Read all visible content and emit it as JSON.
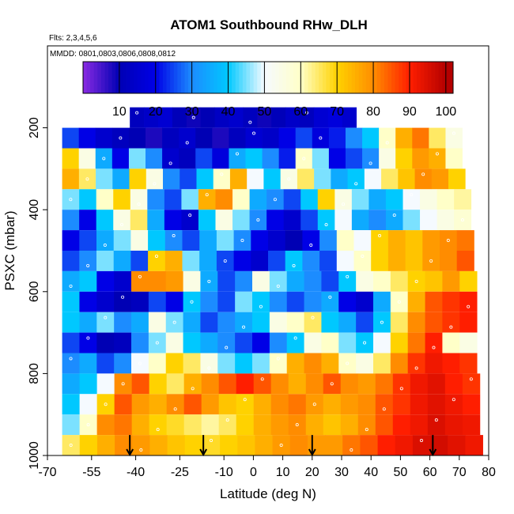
{
  "chart_data": {
    "type": "heatmap",
    "title": "ATOM1 Southbound RHw_DLH",
    "subtitle_flights": "Flts: 2,3,4,5,6",
    "subtitle_dates": "MMDD: 0801,0803,0806,0808,0812",
    "xlabel": "Latitude (deg N)",
    "ylabel": "PSXC (mbar)",
    "xlim": [
      -70,
      80
    ],
    "ylim": [
      1000,
      0
    ],
    "x_ticks": [
      -70,
      -55,
      -40,
      -25,
      -10,
      0,
      10,
      20,
      30,
      40,
      50,
      60,
      70,
      80
    ],
    "y_ticks": [
      200,
      400,
      600,
      800,
      1000
    ],
    "colorbar": {
      "range": [
        0,
        102
      ],
      "ticks": [
        10,
        20,
        30,
        40,
        50,
        60,
        70,
        80,
        90,
        100
      ],
      "stops": [
        {
          "v": 0,
          "color": "#8a2be2"
        },
        {
          "v": 10,
          "color": "#0000b4"
        },
        {
          "v": 20,
          "color": "#0000e6"
        },
        {
          "v": 30,
          "color": "#1c8cff"
        },
        {
          "v": 40,
          "color": "#00c8ff"
        },
        {
          "v": 50,
          "color": "#f5faff"
        },
        {
          "v": 60,
          "color": "#ffffc8"
        },
        {
          "v": 70,
          "color": "#ffd200"
        },
        {
          "v": 80,
          "color": "#ff8c00"
        },
        {
          "v": 90,
          "color": "#ff1e00"
        },
        {
          "v": 100,
          "color": "#b40000"
        }
      ]
    },
    "pressure_bins": [
      {
        "p": 175,
        "lat_min": -42,
        "lat_max": 35,
        "rh": [
          12,
          14,
          16,
          11,
          9,
          10,
          13,
          15,
          12,
          9,
          11,
          14,
          12,
          16,
          18,
          15
        ]
      },
      {
        "p": 225,
        "lat_min": -65,
        "lat_max": 71,
        "rh": [
          25,
          20,
          15,
          12,
          10,
          8,
          12,
          15,
          10,
          8,
          12,
          16,
          14,
          20,
          25,
          18,
          22,
          30,
          40,
          60,
          75,
          82,
          65,
          55
        ]
      },
      {
        "p": 275,
        "lat_min": -65,
        "lat_max": 71,
        "rh": [
          70,
          55,
          35,
          20,
          45,
          30,
          15,
          12,
          25,
          18,
          35,
          40,
          30,
          22,
          60,
          45,
          20,
          25,
          30,
          55,
          70,
          78,
          75,
          60
        ]
      },
      {
        "p": 325,
        "lat_min": -65,
        "lat_max": 72,
        "rh": [
          75,
          65,
          45,
          35,
          70,
          55,
          30,
          25,
          40,
          60,
          75,
          50,
          40,
          55,
          65,
          45,
          35,
          40,
          50,
          65,
          72,
          80,
          78,
          70
        ]
      },
      {
        "p": 375,
        "lat_min": -65,
        "lat_max": 74,
        "rh": [
          45,
          40,
          60,
          70,
          55,
          30,
          25,
          45,
          75,
          80,
          60,
          35,
          30,
          25,
          40,
          70,
          55,
          45,
          35,
          40,
          50,
          55,
          60,
          62
        ]
      },
      {
        "p": 425,
        "lat_min": -65,
        "lat_max": 74,
        "rh": [
          30,
          20,
          40,
          55,
          65,
          35,
          20,
          15,
          40,
          55,
          45,
          30,
          20,
          15,
          25,
          40,
          50,
          35,
          30,
          35,
          45,
          50,
          55,
          58
        ]
      },
      {
        "p": 475,
        "lat_min": -65,
        "lat_max": 75,
        "rh": [
          20,
          25,
          35,
          45,
          55,
          40,
          30,
          25,
          35,
          45,
          30,
          20,
          15,
          10,
          20,
          30,
          60,
          50,
          70,
          75,
          72,
          78,
          80,
          82
        ]
      },
      {
        "p": 525,
        "lat_min": -65,
        "lat_max": 75,
        "rh": [
          25,
          30,
          45,
          35,
          25,
          70,
          75,
          45,
          35,
          25,
          20,
          15,
          25,
          40,
          30,
          25,
          50,
          60,
          70,
          75,
          72,
          78,
          80,
          85
        ]
      },
      {
        "p": 575,
        "lat_min": -65,
        "lat_max": 76,
        "rh": [
          35,
          40,
          20,
          15,
          80,
          80,
          78,
          55,
          35,
          25,
          30,
          55,
          45,
          35,
          30,
          25,
          40,
          55,
          60,
          65,
          70,
          72,
          78,
          70
        ]
      },
      {
        "p": 625,
        "lat_min": -65,
        "lat_max": 76,
        "rh": [
          40,
          20,
          15,
          10,
          12,
          25,
          20,
          40,
          30,
          25,
          45,
          40,
          30,
          25,
          30,
          35,
          20,
          15,
          35,
          60,
          75,
          85,
          88,
          90
        ]
      },
      {
        "p": 675,
        "lat_min": -65,
        "lat_max": 76,
        "rh": [
          40,
          35,
          45,
          30,
          35,
          55,
          45,
          35,
          25,
          30,
          35,
          40,
          55,
          60,
          65,
          40,
          35,
          25,
          40,
          65,
          80,
          85,
          88,
          90
        ]
      },
      {
        "p": 725,
        "lat_min": -65,
        "lat_max": 76,
        "rh": [
          25,
          20,
          10,
          12,
          30,
          45,
          55,
          40,
          35,
          30,
          25,
          20,
          30,
          40,
          55,
          60,
          45,
          40,
          50,
          70,
          82,
          90,
          60,
          55
        ]
      },
      {
        "p": 775,
        "lat_min": -65,
        "lat_max": 76,
        "rh": [
          30,
          35,
          25,
          30,
          50,
          60,
          70,
          65,
          55,
          45,
          40,
          45,
          60,
          75,
          80,
          75,
          60,
          55,
          65,
          80,
          88,
          92,
          90,
          88
        ]
      },
      {
        "p": 825,
        "lat_min": -65,
        "lat_max": 77,
        "rh": [
          35,
          40,
          50,
          80,
          85,
          70,
          65,
          75,
          80,
          85,
          90,
          85,
          80,
          75,
          80,
          85,
          80,
          78,
          82,
          88,
          92,
          94,
          90,
          88
        ]
      },
      {
        "p": 875,
        "lat_min": -65,
        "lat_max": 77,
        "rh": [
          40,
          50,
          70,
          85,
          78,
          75,
          80,
          85,
          78,
          72,
          70,
          75,
          80,
          82,
          78,
          75,
          78,
          80,
          85,
          88,
          92,
          94,
          92,
          90
        ]
      },
      {
        "p": 925,
        "lat_min": -65,
        "lat_max": 77,
        "rh": [
          45,
          60,
          80,
          82,
          75,
          70,
          68,
          65,
          62,
          65,
          70,
          75,
          78,
          80,
          75,
          72,
          75,
          80,
          85,
          90,
          92,
          95,
          93,
          92
        ]
      },
      {
        "p": 975,
        "lat_min": -65,
        "lat_max": 78,
        "rh": [
          65,
          70,
          75,
          80,
          78,
          75,
          72,
          70,
          68,
          70,
          72,
          75,
          78,
          80,
          78,
          78,
          82,
          85,
          90,
          92,
          95,
          96,
          94,
          92
        ]
      }
    ],
    "arrows_at_lat": [
      -42,
      -17,
      20,
      61
    ]
  }
}
